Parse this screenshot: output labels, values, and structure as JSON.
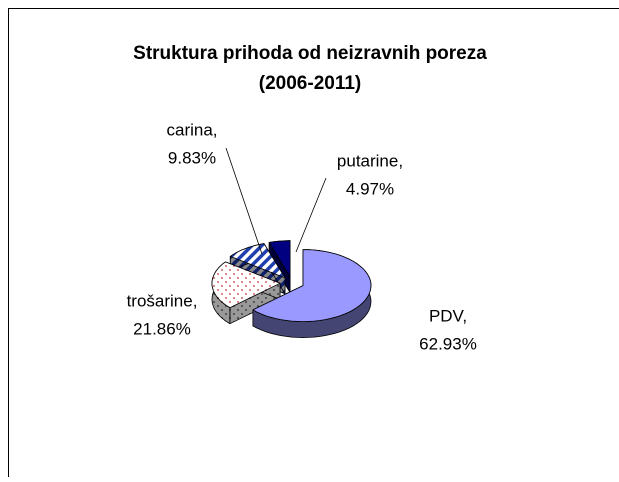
{
  "chart_data": {
    "type": "pie3d",
    "title": "Struktura prihoda od neizravnih poreza",
    "subtitle": "(2006-2011)",
    "categories": [
      "PDV,",
      "trošarine,",
      "carina,",
      "putarine,"
    ],
    "values": [
      62.93,
      21.86,
      9.83,
      4.97
    ],
    "value_labels": [
      "62.93%",
      "21.86%",
      "9.83%",
      "4.97%"
    ],
    "colors": [
      "#9999ff",
      "#ffffff",
      "#ffffff",
      "#000080"
    ],
    "fills": [
      "solid",
      "dots",
      "hatch",
      "solid"
    ],
    "exploded": true
  }
}
